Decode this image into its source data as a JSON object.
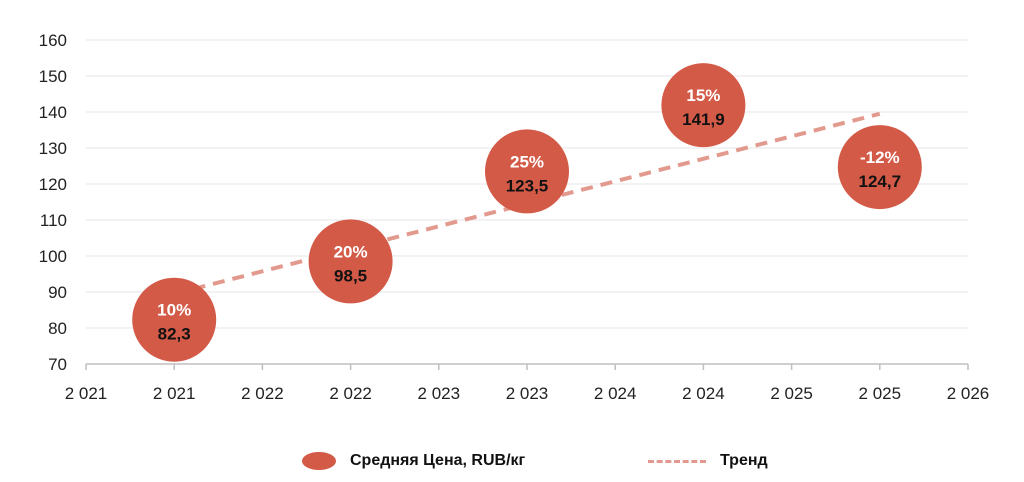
{
  "colors": {
    "bubble": "#D45A48",
    "trend": "#E39A8E",
    "grid": "#E4E4E4",
    "axis": "#BFBFBF"
  },
  "chart_data": {
    "type": "scatter",
    "x_ticks": [
      "2 021",
      "2 021",
      "2 022",
      "2 022",
      "2 023",
      "2 023",
      "2 024",
      "2 024",
      "2 025",
      "2 025",
      "2 026"
    ],
    "y_ticks": [
      70,
      80,
      90,
      100,
      110,
      120,
      130,
      140,
      150,
      160
    ],
    "ylim": [
      70,
      160
    ],
    "xlim": [
      2020.5,
      2025.5
    ],
    "grid": true,
    "legend_position": "bottom",
    "series": [
      {
        "name": "Средняя Цена, RUB/кг",
        "points": [
          {
            "x": 2021,
            "y": 82.3,
            "label": "82,3",
            "change": "10%"
          },
          {
            "x": 2022,
            "y": 98.5,
            "label": "98,5",
            "change": "20%"
          },
          {
            "x": 2023,
            "y": 123.5,
            "label": "123,5",
            "change": "25%"
          },
          {
            "x": 2024,
            "y": 141.9,
            "label": "141,9",
            "change": "15%"
          },
          {
            "x": 2025,
            "y": 124.7,
            "label": "124,7",
            "change": "-12%"
          }
        ]
      },
      {
        "name": "Тренд",
        "line": [
          {
            "x": 2021,
            "y": 89.5
          },
          {
            "x": 2025,
            "y": 139.5
          }
        ]
      }
    ]
  }
}
